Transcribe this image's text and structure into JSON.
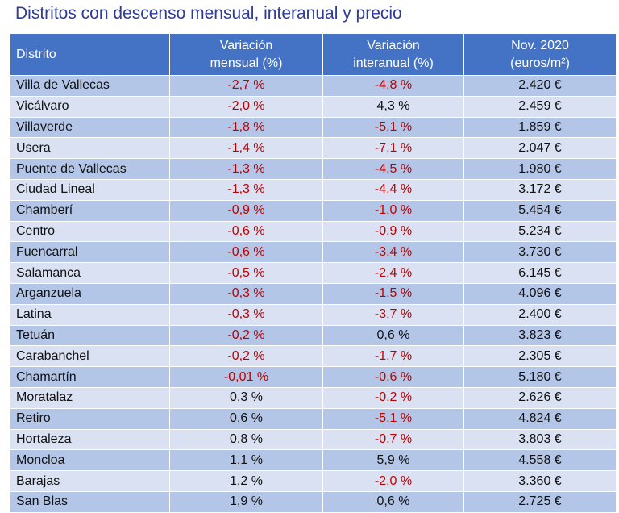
{
  "title": "Distritos con descenso mensual, interanual y precio",
  "headers": {
    "district": "Distrito",
    "monthly_1": "Variación",
    "monthly_2": "mensual (%)",
    "annual_1": "Variación",
    "annual_2": "interanual (%)",
    "price_1": "Nov. 2020",
    "price_2": "(euros/m²)"
  },
  "colors": {
    "header_bg": "#4472c4",
    "row_dark": "#b4c6e7",
    "row_light": "#d9e1f2",
    "negative": "#c00000",
    "title": "#2f3b96"
  },
  "rows": [
    {
      "district": "Villa de Vallecas",
      "monthly": "-2,7 %",
      "annual": "-4,8 %",
      "price": "2.420 €"
    },
    {
      "district": "Vicálvaro",
      "monthly": "-2,0 %",
      "annual": "4,3 %",
      "price": "2.459 €"
    },
    {
      "district": "Villaverde",
      "monthly": "-1,8 %",
      "annual": "-5,1 %",
      "price": "1.859 €"
    },
    {
      "district": "Usera",
      "monthly": "-1,4 %",
      "annual": "-7,1 %",
      "price": "2.047 €"
    },
    {
      "district": "Puente de Vallecas",
      "monthly": "-1,3 %",
      "annual": "-4,5 %",
      "price": "1.980 €"
    },
    {
      "district": "Ciudad Lineal",
      "monthly": "-1,3 %",
      "annual": "-4,4 %",
      "price": "3.172 €"
    },
    {
      "district": "Chamberí",
      "monthly": "-0,9 %",
      "annual": "-1,0 %",
      "price": "5.454 €"
    },
    {
      "district": "Centro",
      "monthly": "-0,6 %",
      "annual": "-0,9 %",
      "price": "5.234 €"
    },
    {
      "district": "Fuencarral",
      "monthly": "-0,6 %",
      "annual": "-3,4 %",
      "price": "3.730 €"
    },
    {
      "district": "Salamanca",
      "monthly": "-0,5 %",
      "annual": "-2,4 %",
      "price": "6.145 €"
    },
    {
      "district": "Arganzuela",
      "monthly": "-0,3 %",
      "annual": "-1,5 %",
      "price": "4.096 €"
    },
    {
      "district": "Latina",
      "monthly": "-0,3 %",
      "annual": "-3,7 %",
      "price": "2.400 €"
    },
    {
      "district": "Tetuán",
      "monthly": "-0,2 %",
      "annual": "0,6 %",
      "price": "3.823 €"
    },
    {
      "district": "Carabanchel",
      "monthly": "-0,2 %",
      "annual": "-1,7 %",
      "price": "2.305 €"
    },
    {
      "district": "Chamartín",
      "monthly": "-0,01 %",
      "annual": "-0,6 %",
      "price": "5.180 €"
    },
    {
      "district": "Moratalaz",
      "monthly": "0,3 %",
      "annual": "-0,2 %",
      "price": "2.626 €"
    },
    {
      "district": "Retiro",
      "monthly": "0,6 %",
      "annual": "-5,1 %",
      "price": "4.824 €"
    },
    {
      "district": "Hortaleza",
      "monthly": "0,8 %",
      "annual": "-0,7 %",
      "price": "3.803 €"
    },
    {
      "district": "Moncloa",
      "monthly": "1,1 %",
      "annual": "5,9 %",
      "price": "4.558 €"
    },
    {
      "district": "Barajas",
      "monthly": "1,2 %",
      "annual": "-2,0 %",
      "price": "3.360 €"
    },
    {
      "district": "San Blas",
      "monthly": "1,9 %",
      "annual": "0,6 %",
      "price": "2.725 €"
    }
  ]
}
